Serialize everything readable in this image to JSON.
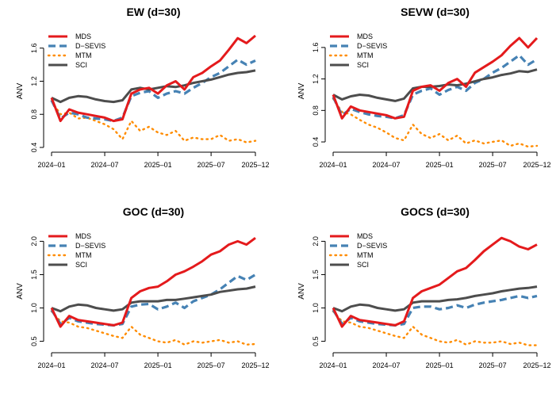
{
  "chart_data": [
    {
      "type": "line",
      "title": "EW (d=30)",
      "ylabel": "ANV",
      "xlabel": "",
      "x_ticks": [
        "2024–01",
        "2024–07",
        "2025–01",
        "2025–07",
        "2025–12"
      ],
      "y_ticks": [
        "0.4",
        "0.8",
        "1.2",
        "1.6"
      ],
      "ylim": [
        0.4,
        1.76
      ],
      "x": [
        "2024-01",
        "2024-02",
        "2024-03",
        "2024-04",
        "2024-05",
        "2024-06",
        "2024-07",
        "2024-08",
        "2024-09",
        "2024-10",
        "2024-11",
        "2024-12",
        "2025-01",
        "2025-02",
        "2025-03",
        "2025-04",
        "2025-05",
        "2025-06",
        "2025-07",
        "2025-08",
        "2025-09",
        "2025-10",
        "2025-11",
        "2025-12"
      ],
      "legend_position": "top-left",
      "series": [
        {
          "name": "MDS",
          "color": "#e41a1c",
          "style": "solid",
          "values": [
            1.0,
            0.72,
            0.86,
            0.82,
            0.8,
            0.78,
            0.76,
            0.72,
            0.74,
            1.05,
            1.1,
            1.12,
            1.05,
            1.15,
            1.2,
            1.1,
            1.25,
            1.3,
            1.38,
            1.45,
            1.58,
            1.72,
            1.66,
            1.75
          ]
        },
        {
          "name": "D−SEVIS",
          "color": "#4682b4",
          "style": "dashed",
          "values": [
            0.97,
            0.75,
            0.82,
            0.8,
            0.76,
            0.75,
            0.74,
            0.72,
            0.76,
            1.02,
            1.06,
            1.08,
            1.0,
            1.05,
            1.08,
            1.05,
            1.12,
            1.18,
            1.25,
            1.3,
            1.38,
            1.46,
            1.4,
            1.45
          ]
        },
        {
          "name": "MTM",
          "color": "#ff8c00",
          "style": "dotted",
          "values": [
            0.96,
            0.8,
            0.82,
            0.75,
            0.76,
            0.72,
            0.68,
            0.62,
            0.5,
            0.72,
            0.6,
            0.65,
            0.58,
            0.55,
            0.6,
            0.48,
            0.52,
            0.5,
            0.5,
            0.55,
            0.48,
            0.5,
            0.46,
            0.48
          ]
        },
        {
          "name": "SCI",
          "color": "#4d4d4d",
          "style": "solid",
          "values": [
            1.0,
            0.95,
            1.0,
            1.02,
            1.01,
            0.98,
            0.96,
            0.95,
            0.97,
            1.1,
            1.12,
            1.1,
            1.12,
            1.14,
            1.13,
            1.15,
            1.18,
            1.2,
            1.22,
            1.25,
            1.28,
            1.3,
            1.31,
            1.33
          ]
        }
      ]
    },
    {
      "type": "line",
      "title": "SEVW (d=30)",
      "ylabel": "ANV",
      "xlabel": "",
      "x_ticks": [
        "2024–01",
        "2024–07",
        "2025–01",
        "2025–07",
        "2025–12"
      ],
      "y_ticks": [
        "0.4",
        "0.8",
        "1.2",
        "1.6"
      ],
      "ylim": [
        0.33,
        1.76
      ],
      "x": [
        "2024-01",
        "2024-02",
        "2024-03",
        "2024-04",
        "2024-05",
        "2024-06",
        "2024-07",
        "2024-08",
        "2024-09",
        "2024-10",
        "2024-11",
        "2024-12",
        "2025-01",
        "2025-02",
        "2025-03",
        "2025-04",
        "2025-05",
        "2025-06",
        "2025-07",
        "2025-08",
        "2025-09",
        "2025-10",
        "2025-11",
        "2025-12"
      ],
      "legend_position": "top-left",
      "series": [
        {
          "name": "MDS",
          "color": "#e41a1c",
          "style": "solid",
          "values": [
            1.0,
            0.7,
            0.85,
            0.8,
            0.78,
            0.76,
            0.74,
            0.7,
            0.72,
            1.05,
            1.1,
            1.12,
            1.05,
            1.15,
            1.2,
            1.1,
            1.28,
            1.35,
            1.42,
            1.5,
            1.62,
            1.72,
            1.6,
            1.72
          ]
        },
        {
          "name": "D−SEVIS",
          "color": "#4682b4",
          "style": "dashed",
          "values": [
            0.97,
            0.74,
            0.82,
            0.78,
            0.75,
            0.73,
            0.72,
            0.7,
            0.74,
            1.0,
            1.05,
            1.08,
            1.0,
            1.06,
            1.1,
            1.05,
            1.15,
            1.2,
            1.28,
            1.34,
            1.42,
            1.5,
            1.38,
            1.45
          ]
        },
        {
          "name": "MTM",
          "color": "#ff8c00",
          "style": "dotted",
          "values": [
            0.95,
            0.78,
            0.75,
            0.68,
            0.62,
            0.58,
            0.52,
            0.45,
            0.42,
            0.62,
            0.5,
            0.45,
            0.5,
            0.42,
            0.48,
            0.38,
            0.42,
            0.38,
            0.4,
            0.42,
            0.35,
            0.38,
            0.34,
            0.35
          ]
        },
        {
          "name": "SCI",
          "color": "#4d4d4d",
          "style": "solid",
          "values": [
            1.0,
            0.94,
            0.98,
            1.0,
            0.99,
            0.96,
            0.94,
            0.92,
            0.95,
            1.08,
            1.1,
            1.1,
            1.11,
            1.13,
            1.12,
            1.14,
            1.17,
            1.2,
            1.22,
            1.25,
            1.27,
            1.3,
            1.29,
            1.32
          ]
        }
      ]
    },
    {
      "type": "line",
      "title": "GOC (d=30)",
      "ylabel": "ANV",
      "xlabel": "",
      "x_ticks": [
        "2024–01",
        "2024–07",
        "2025–01",
        "2025–07",
        "2025–12"
      ],
      "y_ticks": [
        "0.5",
        "1.0",
        "1.5",
        "2.0"
      ],
      "ylim": [
        0.4,
        2.1
      ],
      "x": [
        "2024-01",
        "2024-02",
        "2024-03",
        "2024-04",
        "2024-05",
        "2024-06",
        "2024-07",
        "2024-08",
        "2024-09",
        "2024-10",
        "2024-11",
        "2024-12",
        "2025-01",
        "2025-02",
        "2025-03",
        "2025-04",
        "2025-05",
        "2025-06",
        "2025-07",
        "2025-08",
        "2025-09",
        "2025-10",
        "2025-11",
        "2025-12"
      ],
      "legend_position": "top-left",
      "series": [
        {
          "name": "MDS",
          "color": "#e41a1c",
          "style": "solid",
          "values": [
            1.0,
            0.72,
            0.88,
            0.82,
            0.8,
            0.78,
            0.76,
            0.74,
            0.78,
            1.15,
            1.25,
            1.3,
            1.32,
            1.4,
            1.5,
            1.55,
            1.62,
            1.7,
            1.8,
            1.85,
            1.95,
            2.0,
            1.95,
            2.05
          ]
        },
        {
          "name": "D−SEVIS",
          "color": "#4682b4",
          "style": "dashed",
          "values": [
            0.97,
            0.76,
            0.85,
            0.8,
            0.78,
            0.76,
            0.75,
            0.74,
            0.76,
            1.02,
            1.05,
            1.06,
            0.98,
            1.02,
            1.08,
            1.0,
            1.1,
            1.15,
            1.2,
            1.28,
            1.38,
            1.48,
            1.42,
            1.5
          ]
        },
        {
          "name": "MTM",
          "color": "#ff8c00",
          "style": "dotted",
          "values": [
            0.95,
            0.8,
            0.78,
            0.72,
            0.7,
            0.66,
            0.62,
            0.58,
            0.55,
            0.72,
            0.6,
            0.55,
            0.5,
            0.48,
            0.52,
            0.45,
            0.5,
            0.48,
            0.5,
            0.52,
            0.48,
            0.5,
            0.45,
            0.46
          ]
        },
        {
          "name": "SCI",
          "color": "#4d4d4d",
          "style": "solid",
          "values": [
            1.0,
            0.95,
            1.02,
            1.05,
            1.04,
            1.0,
            0.98,
            0.96,
            0.98,
            1.08,
            1.1,
            1.1,
            1.1,
            1.12,
            1.12,
            1.14,
            1.16,
            1.18,
            1.2,
            1.24,
            1.26,
            1.28,
            1.29,
            1.32
          ]
        }
      ]
    },
    {
      "type": "line",
      "title": "GOCS (d=30)",
      "ylabel": "ANV",
      "xlabel": "",
      "x_ticks": [
        "2024–01",
        "2024–07",
        "2025–01",
        "2025–07",
        "2025–12"
      ],
      "y_ticks": [
        "0.5",
        "1.0",
        "1.5",
        "2.0"
      ],
      "ylim": [
        0.4,
        2.1
      ],
      "x": [
        "2024-01",
        "2024-02",
        "2024-03",
        "2024-04",
        "2024-05",
        "2024-06",
        "2024-07",
        "2024-08",
        "2024-09",
        "2024-10",
        "2024-11",
        "2024-12",
        "2025-01",
        "2025-02",
        "2025-03",
        "2025-04",
        "2025-05",
        "2025-06",
        "2025-07",
        "2025-08",
        "2025-09",
        "2025-10",
        "2025-11",
        "2025-12"
      ],
      "legend_position": "top-left",
      "series": [
        {
          "name": "MDS",
          "color": "#e41a1c",
          "style": "solid",
          "values": [
            1.0,
            0.72,
            0.88,
            0.82,
            0.8,
            0.78,
            0.76,
            0.74,
            0.8,
            1.15,
            1.25,
            1.3,
            1.35,
            1.45,
            1.55,
            1.6,
            1.72,
            1.85,
            1.95,
            2.05,
            2.0,
            1.92,
            1.88,
            1.95
          ]
        },
        {
          "name": "D−SEVIS",
          "color": "#4682b4",
          "style": "dashed",
          "values": [
            0.97,
            0.76,
            0.85,
            0.8,
            0.78,
            0.76,
            0.75,
            0.74,
            0.76,
            1.0,
            1.02,
            1.02,
            0.98,
            1.0,
            1.04,
            1.0,
            1.05,
            1.08,
            1.1,
            1.12,
            1.15,
            1.18,
            1.15,
            1.18
          ]
        },
        {
          "name": "MTM",
          "color": "#ff8c00",
          "style": "dotted",
          "values": [
            0.95,
            0.8,
            0.78,
            0.72,
            0.7,
            0.66,
            0.62,
            0.58,
            0.55,
            0.72,
            0.6,
            0.55,
            0.5,
            0.48,
            0.52,
            0.45,
            0.5,
            0.48,
            0.48,
            0.5,
            0.46,
            0.48,
            0.44,
            0.44
          ]
        },
        {
          "name": "SCI",
          "color": "#4d4d4d",
          "style": "solid",
          "values": [
            1.0,
            0.95,
            1.02,
            1.05,
            1.04,
            1.0,
            0.98,
            0.96,
            0.98,
            1.08,
            1.1,
            1.1,
            1.1,
            1.12,
            1.13,
            1.15,
            1.18,
            1.2,
            1.22,
            1.25,
            1.27,
            1.29,
            1.3,
            1.32
          ]
        }
      ]
    }
  ]
}
